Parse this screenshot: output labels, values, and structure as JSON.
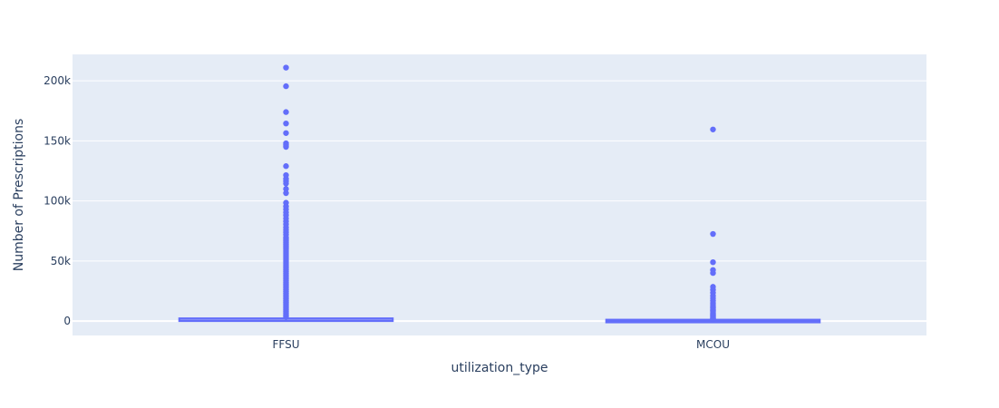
{
  "chart_data": {
    "type": "box",
    "xlabel": "utilization_type",
    "ylabel": "Number of Prescriptions",
    "categories": [
      "FFSU",
      "MCOU"
    ],
    "ylim": [
      -12000,
      222000
    ],
    "yticks": [
      {
        "value": 0,
        "label": "0"
      },
      {
        "value": 50000,
        "label": "50k"
      },
      {
        "value": 100000,
        "label": "100k"
      },
      {
        "value": 150000,
        "label": "150k"
      },
      {
        "value": 200000,
        "label": "200k"
      }
    ],
    "grid": true,
    "colors": {
      "plot_bg": "#e5ecf6",
      "grid": "#ffffff",
      "series": "#636efa",
      "text": "#2a3f5f"
    },
    "boxes": [
      {
        "category": "FFSU",
        "min": 0,
        "q1": 100,
        "median": 400,
        "q3": 1500,
        "max": 3500,
        "outliers": [
          211000,
          195500,
          174000,
          164500,
          156500,
          148000,
          146500,
          145000,
          129000,
          121500,
          118500,
          116500,
          114500,
          110000,
          106500,
          98500,
          95500,
          93000,
          90500,
          88000,
          85500,
          83000,
          80500,
          78000,
          76000,
          74000,
          72000,
          69500,
          68000,
          66500,
          65000,
          63500,
          62000,
          60500,
          59000,
          57500,
          56000,
          54500,
          53000,
          51500,
          50000,
          48500,
          47000,
          45500,
          44000,
          42500,
          41000,
          39500,
          38000,
          36500,
          35000,
          33500,
          32000,
          30500,
          29000,
          27500,
          26000,
          24500,
          23000,
          21500,
          20000,
          18500,
          17000,
          15500,
          14000,
          12500,
          11000,
          9500,
          8000,
          6500,
          5000,
          3800
        ]
      },
      {
        "category": "MCOU",
        "min": 0,
        "q1": 50,
        "median": 150,
        "q3": 400,
        "max": 1000,
        "outliers": [
          159500,
          72500,
          49000,
          42500,
          40000,
          28500,
          26000,
          23500,
          21000,
          19000,
          17000,
          15000,
          13500,
          12000,
          11000,
          10000,
          9000,
          8000,
          7000,
          6000,
          5000,
          4200,
          3500,
          2800,
          2200,
          1600,
          1200
        ]
      }
    ]
  }
}
